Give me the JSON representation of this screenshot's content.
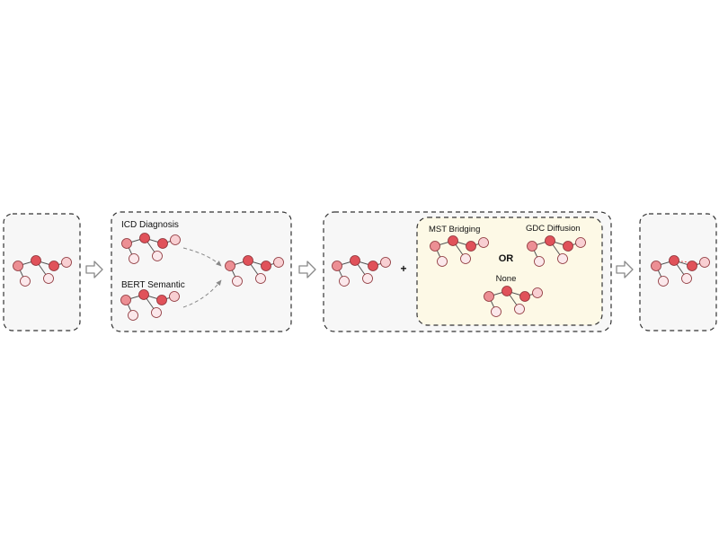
{
  "labels": {
    "icd_diagnosis": "ICD Diagnosis",
    "bert_semantic": "BERT Semantic",
    "plus": "+",
    "mst_bridging": "MST Bridging",
    "gdc_diffusion": "GDC Diffusion",
    "or": "OR",
    "none": "None"
  },
  "colors": {
    "panel_fill": "#f7f7f7",
    "panel_border": "#333333",
    "options_fill": "#fdf9e6",
    "node_dark_fill": "#e0525a",
    "node_mid_fill": "#ec8f94",
    "node_light_fill": "#f8cfd2",
    "node_pale_fill": "#fbe8eb",
    "node_stroke": "#8a2f35",
    "edge": "#555555",
    "dashed_new_edge": "#e04a4a",
    "arrow": "#777777"
  }
}
